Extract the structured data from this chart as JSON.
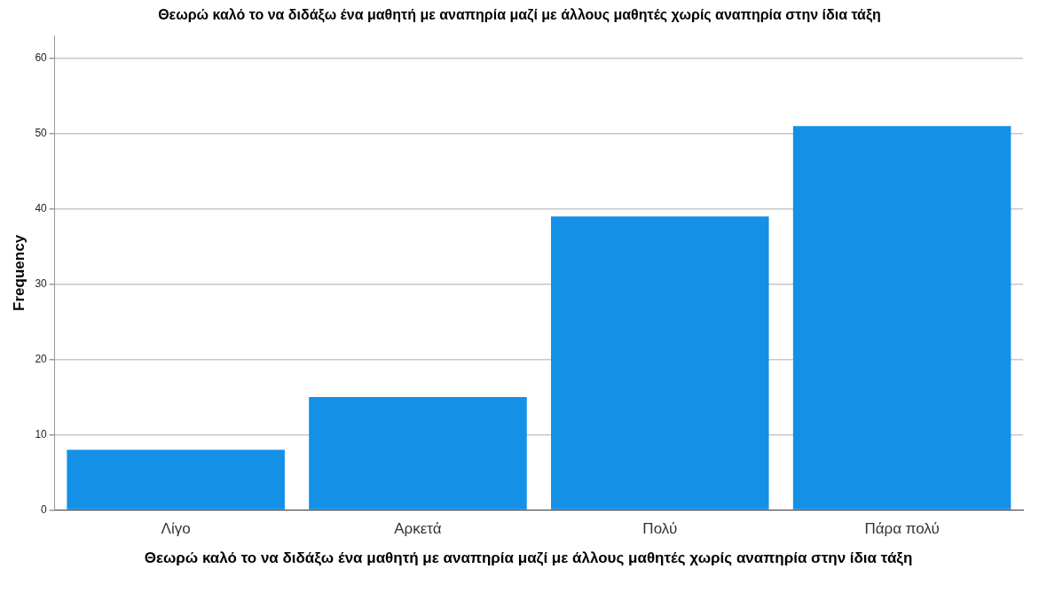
{
  "chart_data": {
    "type": "bar",
    "title": "Θεωρώ καλό το να διδάξω ένα μαθητή με αναπηρία μαζί με άλλους μαθητές χωρίς αναπηρία στην ίδια τάξη",
    "xlabel": "Θεωρώ καλό το να διδάξω ένα μαθητή με αναπηρία μαζί με άλλους μαθητές χωρίς αναπηρία στην ίδια τάξη",
    "ylabel": "Frequency",
    "categories": [
      "Λίγο",
      "Αρκετά",
      "Πολύ",
      "Πάρα πολύ"
    ],
    "values": [
      8,
      15,
      39,
      51
    ],
    "color": "#1490e6",
    "ylim": [
      0,
      63
    ],
    "yticks": [
      0,
      10,
      20,
      30,
      40,
      50,
      60
    ],
    "grid": "y"
  }
}
